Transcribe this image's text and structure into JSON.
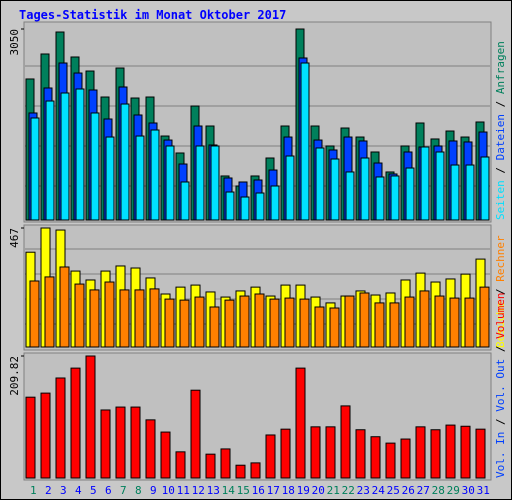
{
  "separator": " / ",
  "chart_data": [
    {
      "type": "bar",
      "title": "Tages-Statistik im Monat Oktober 2017",
      "ylim": [
        0,
        3050
      ],
      "yticks": [
        3050
      ],
      "series": [
        {
          "name": "Anfragen",
          "color": "#00805c",
          "values": [
            2252,
            2651,
            3002,
            2603,
            2379,
            1964,
            2427,
            1948,
            1964,
            1341,
            1070,
            1820,
            1501,
            703,
            543,
            703,
            990,
            1501,
            3050,
            1501,
            1182,
            1469,
            1325,
            1086,
            767,
            1182,
            1549,
            1294,
            1421,
            1325,
            1565
          ]
        },
        {
          "name": "Dateien",
          "color": "#0040ff",
          "values": [
            1709,
            2108,
            2507,
            2347,
            2076,
            1613,
            2124,
            1677,
            1549,
            1277,
            894,
            1501,
            1198,
            671,
            607,
            639,
            798,
            1325,
            2587,
            1277,
            1118,
            1325,
            1262,
            910,
            735,
            1086,
            1166,
            1182,
            1262,
            1246,
            1405
          ]
        },
        {
          "name": "Seiten",
          "color": "#00e0ff",
          "values": [
            1629,
            1900,
            2028,
            2092,
            1709,
            1325,
            1852,
            1341,
            1437,
            1182,
            607,
            1182,
            1182,
            447,
            367,
            431,
            543,
            1022,
            2507,
            1150,
            974,
            767,
            990,
            687,
            703,
            830,
            1166,
            1086,
            878,
            878,
            1006
          ]
        }
      ]
    },
    {
      "type": "bar",
      "ylim": [
        0,
        467
      ],
      "yticks": [
        467
      ],
      "series": [
        {
          "name": "Besuche",
          "color": "#ffff00",
          "values": [
            372,
            467,
            459,
            298,
            263,
            298,
            318,
            310,
            271,
            208,
            235,
            243,
            216,
            196,
            220,
            235,
            200,
            243,
            243,
            196,
            173,
            200,
            220,
            204,
            212,
            263,
            290,
            255,
            267,
            286,
            345
          ]
        },
        {
          "name": "Rechner",
          "color": "#ff8000",
          "values": [
            259,
            275,
            314,
            247,
            224,
            255,
            224,
            224,
            228,
            188,
            184,
            196,
            157,
            184,
            200,
            208,
            188,
            192,
            188,
            157,
            153,
            200,
            212,
            173,
            173,
            196,
            220,
            200,
            192,
            192,
            235
          ]
        }
      ]
    },
    {
      "type": "bar",
      "ylim": [
        0,
        209.82
      ],
      "yticks": [
        209.82
      ],
      "categories": [
        "1",
        "2",
        "3",
        "4",
        "5",
        "6",
        "7",
        "8",
        "9",
        "10",
        "11",
        "12",
        "13",
        "14",
        "15",
        "16",
        "17",
        "18",
        "19",
        "20",
        "21",
        "22",
        "23",
        "24",
        "25",
        "26",
        "27",
        "28",
        "29",
        "30",
        "31"
      ],
      "label_colors": [
        "#00805c",
        "#0000ff",
        "#0000ff",
        "#0000ff",
        "#0000ff",
        "#0000ff",
        "#00805c",
        "#00805c",
        "#0000ff",
        "#0000ff",
        "#0000ff",
        "#0000ff",
        "#0000ff",
        "#00805c",
        "#00805c",
        "#0000ff",
        "#0000ff",
        "#0000ff",
        "#0000ff",
        "#0000ff",
        "#00805c",
        "#00805c",
        "#0000ff",
        "#0000ff",
        "#0000ff",
        "#0000ff",
        "#0000ff",
        "#00805c",
        "#00805c",
        "#0000ff",
        "#0000ff"
      ],
      "legend_extra": [
        {
          "name": "Vol. Out",
          "color": "#0040ff"
        },
        {
          "name": "Vol. In",
          "color": "#0040ff"
        }
      ],
      "series": [
        {
          "name": "Volumen",
          "color": "#ff0000",
          "values": [
            139,
            146,
            172,
            189,
            209.82,
            117,
            122,
            122,
            100,
            79,
            45,
            151,
            41,
            50,
            22,
            26,
            74,
            84,
            189,
            88,
            88,
            124,
            83,
            71,
            60,
            67,
            88,
            83,
            91,
            89,
            84
          ]
        }
      ]
    }
  ]
}
